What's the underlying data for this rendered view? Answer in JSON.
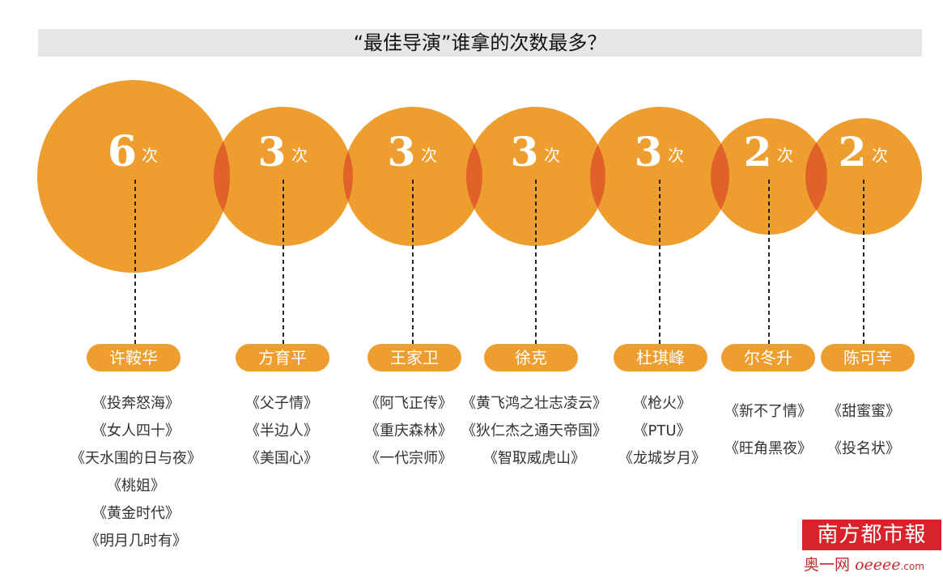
{
  "title": "“最佳导演”谁拿的次数最多？",
  "chart_data": {
    "type": "bubble",
    "unit": "次",
    "directors": [
      {
        "name": "许鞍华",
        "count": 6,
        "films": [
          "《投奔怒海》",
          "《女人四十》",
          "《天水围的日与夜》",
          "《桃姐》",
          "《黄金时代》",
          "《明月几时有》"
        ]
      },
      {
        "name": "方育平",
        "count": 3,
        "films": [
          "《父子情》",
          "《半边人》",
          "《美国心》"
        ]
      },
      {
        "name": "王家卫",
        "count": 3,
        "films": [
          "《阿飞正传》",
          "《重庆森林》",
          "《一代宗师》"
        ]
      },
      {
        "name": "徐克",
        "count": 3,
        "films": [
          "《黄飞鸿之壮志凌云》",
          "《狄仁杰之通天帝国》",
          "《智取威虎山》"
        ]
      },
      {
        "name": "杜琪峰",
        "count": 3,
        "films": [
          "《枪火》",
          "《PTU》",
          "《龙城岁月》"
        ]
      },
      {
        "name": "尔冬升",
        "count": 2,
        "films": [
          "《新不了情》",
          "《旺角黑夜》"
        ]
      },
      {
        "name": "陈可辛",
        "count": 2,
        "films": [
          "《甜蜜蜜》",
          "《投名状》"
        ]
      }
    ]
  },
  "colors": {
    "bubble": "#ee9e2f",
    "overlap": "#e0622a",
    "pill": "#ee9e2f"
  },
  "logo": {
    "name": "南方都市報",
    "sub": "奥一网",
    "web": "oeeee",
    "com": ".com"
  }
}
